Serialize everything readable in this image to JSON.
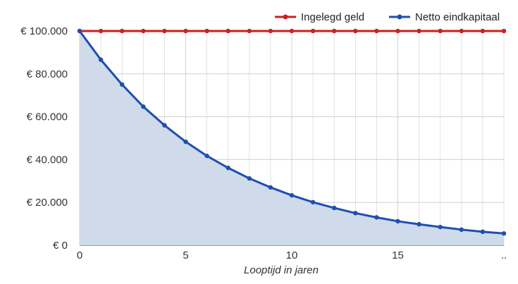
{
  "colors": {
    "invested": "#cc1f1f",
    "net": "#1f4fae",
    "area_fill": "#cfdaea",
    "grid": "#d0d0d0"
  },
  "legend": [
    "Ingelegd geld",
    "Netto eindkapitaal"
  ],
  "chart_data": {
    "type": "line",
    "xlabel": "Looptijd in jaren",
    "ylabel": "",
    "title": "",
    "x": [
      0,
      1,
      2,
      3,
      4,
      5,
      6,
      7,
      8,
      9,
      10,
      11,
      12,
      13,
      14,
      15,
      16,
      17,
      18,
      19,
      20
    ],
    "xlim": [
      0,
      20
    ],
    "x_ticks": [
      0,
      5,
      10,
      15
    ],
    "x_tick_labels": [
      "0",
      "5",
      "10",
      "15"
    ],
    "x_end_label": "..",
    "ylim": [
      0,
      100000
    ],
    "y_ticks": [
      0,
      20000,
      40000,
      60000,
      80000,
      100000
    ],
    "y_tick_labels": [
      "€ 0",
      "€ 20.000",
      "€ 40.000",
      "€ 60.000",
      "€ 80.000",
      "€ 100.000"
    ],
    "grid": true,
    "legend_position": "top-right",
    "series": [
      {
        "name": "Ingelegd geld",
        "color_key": "invested",
        "fill": false,
        "values": [
          100000,
          100000,
          100000,
          100000,
          100000,
          100000,
          100000,
          100000,
          100000,
          100000,
          100000,
          100000,
          100000,
          100000,
          100000,
          100000,
          100000,
          100000,
          100000,
          100000,
          100000
        ]
      },
      {
        "name": "Netto eindkapitaal",
        "color_key": "net",
        "fill": true,
        "values": [
          100000,
          86600,
          75000,
          64700,
          56000,
          48300,
          41700,
          36100,
          31200,
          27000,
          23300,
          20100,
          17400,
          15000,
          13000,
          11200,
          9800,
          8500,
          7300,
          6300,
          5500
        ]
      }
    ]
  }
}
